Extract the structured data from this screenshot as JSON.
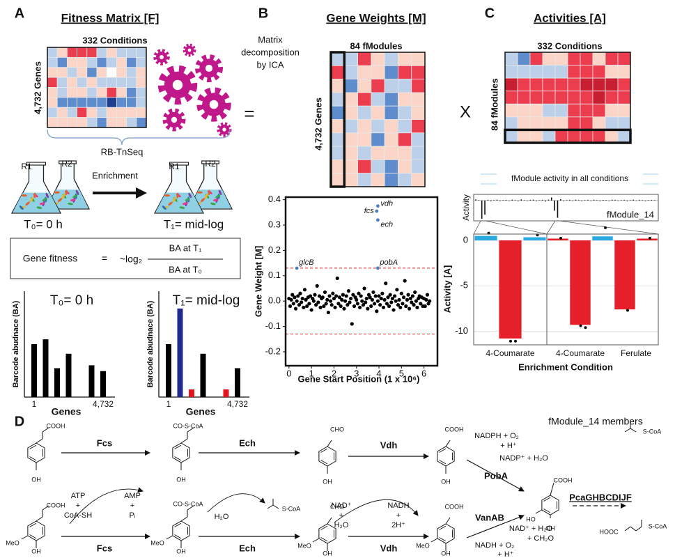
{
  "panel_a": {
    "label": "A",
    "title": "Fitness Matrix [F]",
    "matrix_columns": "332 Conditions",
    "matrix_rows": "4,732 Genes",
    "method": "RB-TnSeq",
    "replicates": [
      "R1",
      "R2",
      "R1",
      "R2"
    ],
    "enrichment": "Enrichment",
    "t0": "T₀= 0 h",
    "t1": "T₁=  mid-log",
    "formula": {
      "lhs": "Gene fitness",
      "equals": "=",
      "log": "~log₂",
      "numerator": "BA at T₁",
      "denominator": "BA at T₀"
    }
  },
  "middle": {
    "decomposition": [
      "Matrix",
      "decomposition",
      "by ICA"
    ],
    "equals": "=",
    "times": "X"
  },
  "panel_b": {
    "label": "B",
    "title": "Gene Weights [M]",
    "matrix_columns": "84 fModules",
    "matrix_rows": "4,732 Genes"
  },
  "panel_c": {
    "label": "C",
    "title": "Activities [A]",
    "matrix_columns": "332 Conditions",
    "matrix_rows": "84 fModules"
  },
  "chart_data": [
    {
      "type": "bar",
      "title": "T₀= 0 h",
      "ylabel": "Barcode abudnace (BA)",
      "xlabel": "Genes",
      "categories": [
        "1",
        null,
        null,
        null,
        null,
        null,
        "4,732"
      ],
      "values": [
        0.55,
        0.6,
        0.3,
        0.45,
        null,
        0.33,
        0.27
      ],
      "colors": [
        "#000000",
        "#000000",
        "#000000",
        "#000000",
        null,
        "#000000",
        "#000000"
      ],
      "ylim": [
        0,
        1.1
      ]
    },
    {
      "type": "bar",
      "title": "T₁= mid-log",
      "ylabel": "Barcode abudnace (BA)",
      "xlabel": "Genes",
      "categories": [
        "1",
        null,
        null,
        null,
        null,
        null,
        "4,732"
      ],
      "values": [
        0.55,
        0.92,
        0.08,
        0.45,
        null,
        0.08,
        0.3
      ],
      "colors": [
        "#000000",
        "#1f2a8c",
        "#e3141b",
        "#000000",
        null,
        "#e3141b",
        "#000000"
      ],
      "ylim": [
        0,
        1.1
      ]
    },
    {
      "type": "scatter",
      "ylabel": "Gene Weight [M]",
      "xlabel": "Gene Start Position (1 x 10⁶)",
      "xlim": [
        -0.15,
        6.6
      ],
      "ylim": [
        -0.255,
        0.41
      ],
      "xticks": [
        0,
        1,
        2,
        3,
        4,
        5,
        6
      ],
      "yticks": [
        -0.2,
        -0.1,
        {
          "value": 0,
          "label": "0.0"
        },
        0.1,
        0.2,
        0.3,
        0.4
      ],
      "thresholds": [
        0.13,
        -0.13
      ],
      "threshold_color": "#e3141b",
      "color": "#000000",
      "highlight_color": "#4a7dc1",
      "x": [
        0,
        0.05,
        0.1,
        0.15,
        0.2,
        0.25,
        0.3,
        0.35,
        0.4,
        0.45,
        0.5,
        0.55,
        0.6,
        0.65,
        0.7,
        0.75,
        0.8,
        0.85,
        0.9,
        0.95,
        1,
        1.05,
        1.1,
        1.15,
        1.2,
        1.25,
        1.3,
        1.35,
        1.4,
        1.45,
        1.5,
        1.55,
        1.6,
        1.65,
        1.7,
        1.75,
        1.8,
        1.85,
        1.9,
        1.95,
        2,
        2.05,
        2.1,
        2.15,
        2.2,
        2.25,
        2.3,
        2.35,
        2.4,
        2.45,
        2.5,
        2.55,
        2.6,
        2.65,
        2.7,
        2.75,
        2.8,
        2.85,
        2.9,
        2.95,
        3,
        3.05,
        3.1,
        3.15,
        3.2,
        3.25,
        3.3,
        3.35,
        3.4,
        3.45,
        3.5,
        3.55,
        3.6,
        3.65,
        3.7,
        3.75,
        3.8,
        3.85,
        3.9,
        3.95,
        4,
        4.05,
        4.1,
        4.15,
        4.2,
        4.25,
        4.3,
        4.35,
        4.4,
        4.45,
        4.5,
        4.55,
        4.6,
        4.65,
        4.7,
        4.75,
        4.8,
        4.85,
        4.9,
        4.95,
        5,
        5.05,
        5.1,
        5.15,
        5.2,
        5.25,
        5.3,
        5.35,
        5.4,
        5.45,
        5.5,
        5.55,
        5.6,
        5.65,
        5.7,
        5.75,
        5.8,
        5.85,
        5.9,
        5.95,
        6,
        6.05,
        6.1,
        6.15,
        6.2,
        6.25
      ],
      "y": [
        0.01,
        -0.02,
        0.005,
        0.025,
        -0.01,
        0.015,
        -0.03,
        0,
        0.02,
        -0.015,
        0.03,
        -0.005,
        0.01,
        -0.025,
        0.045,
        0.005,
        -0.02,
        0.015,
        -0.01,
        0.02,
        -0.035,
        0.01,
        0,
        0.025,
        -0.015,
        0.06,
        -0.005,
        0.02,
        -0.025,
        0.01,
        0.015,
        -0.02,
        0.035,
        -0.01,
        0.005,
        -0.045,
        0.02,
        0,
        -0.015,
        0.03,
        0.01,
        -0.025,
        0.02,
        0.09,
        -0.01,
        0.015,
        -0.02,
        0.005,
        0.025,
        -0.03,
        0,
        0.02,
        -0.015,
        0.04,
        -0.005,
        0.01,
        -0.09,
        0.025,
        -0.02,
        0.015,
        0.005,
        -0.01,
        0.03,
        -0.025,
        0.02,
        0,
        -0.015,
        0.05,
        -0.005,
        0.01,
        -0.03,
        0.025,
        0.015,
        -0.02,
        0.005,
        0.035,
        -0.01,
        0.02,
        -0.04,
        0,
        0.02,
        -0.015,
        0.01,
        0.03,
        -0.025,
        0.005,
        0.07,
        -0.01,
        0.015,
        -0.02,
        0.025,
        -0.005,
        0.01,
        -0.035,
        0.02,
        0,
        0.045,
        -0.015,
        0.005,
        -0.025,
        0.03,
        -0.01,
        0.015,
        0.08,
        -0.02,
        0.005,
        0.025,
        -0.03,
        0.01,
        -0.005,
        0.02,
        -0.015,
        0.035,
        0,
        -0.025,
        0.01,
        0.02,
        -0.01,
        0.015,
        -0.02,
        0.01,
        -0.02,
        0.005,
        0.025,
        -0.01,
        0
      ],
      "highlights": [
        {
          "label": "vdh",
          "x": 3.95,
          "y": 0.375
        },
        {
          "label": "fcs",
          "x": 3.9,
          "y": 0.355
        },
        {
          "label": "ech",
          "x": 3.95,
          "y": 0.32
        },
        {
          "label": "glcB",
          "x": 0.35,
          "y": 0.13
        },
        {
          "label": "pobA",
          "x": 3.95,
          "y": 0.13
        }
      ]
    },
    {
      "type": "strip",
      "title": "fModule activity in all conditions",
      "ylabel": "Activity",
      "annotation": "fModule_14",
      "ylim": [
        -1,
        0.3
      ],
      "values": [
        0.05,
        0.02,
        -0.9,
        -0.7,
        0.03,
        -0.04,
        0.02,
        0.04,
        -0.03,
        0.02,
        0.03,
        -0.02,
        0.04,
        0.02,
        -0.03,
        0.05,
        0.02,
        -0.02,
        0.03,
        0.04,
        -0.03,
        0.02,
        0.03,
        -0.05,
        0.04,
        0.15,
        -0.5,
        -0.85,
        0.06,
        -0.03,
        0.02,
        0.03,
        -0.02,
        0.04,
        0.02,
        -0.03,
        0.02,
        0.03,
        -0.02,
        0.04,
        0.02,
        -0.03,
        0.03,
        0.02,
        -0.02,
        0.04,
        0.03,
        -0.02,
        0.02,
        0.03,
        -0.03,
        0.02,
        0.04,
        -0.02,
        0.03,
        0.02,
        -0.03,
        0.02,
        0.03,
        0.02
      ]
    },
    {
      "type": "grouped_bar",
      "ylabel": "Activity [A]",
      "xlabel": "Enrichment Condition",
      "ylim": [
        -11.5,
        0.7
      ],
      "yticks": [
        0,
        -5,
        -10
      ],
      "grid": true,
      "groups": [
        {
          "label": "4-Coumarate",
          "values": [
            0.5,
            -10.8,
            0.35
          ],
          "colors": [
            "#29abe2",
            "#e5202a",
            "#29abe2"
          ],
          "points": [
            [
              0.8
            ],
            [
              -11.1,
              -11.1
            ],
            [
              0.6
            ]
          ]
        },
        {
          "label": "4-Coumarate",
          "values": [
            0.2,
            -9.3,
            0.45
          ],
          "colors": [
            "#e5202a",
            "#e5202a",
            "#29abe2"
          ],
          "points": [
            [
              0.25
            ],
            [
              -9.4,
              -9.6
            ],
            [
              1.4
            ]
          ]
        },
        {
          "label": "Ferulate",
          "values": [
            -7.6,
            0.2
          ],
          "colors": [
            "#e5202a",
            "#e5202a"
          ],
          "points": [
            [
              -7.7
            ],
            [
              0.25
            ]
          ]
        }
      ]
    }
  ],
  "panel_d": {
    "label": "D",
    "title": "fModule_14 members",
    "enzymes": [
      "Fcs",
      "Ech",
      "Vdh",
      "PobA",
      "Fcs",
      "Ech",
      "Vdh",
      "VanAB",
      "PcaGHBCDIJF"
    ],
    "cofactors": [
      "ATP",
      "+",
      "CoA-SH",
      "AMP",
      "+",
      "Pᵢ",
      "H₂O",
      "NAD⁺",
      "+",
      "H₂O",
      "NADH",
      "+",
      "2H⁺",
      "NADPH + O₂",
      "+ H⁺",
      "NADP⁺ + H₂O",
      "NAD⁺ + H₂O",
      "+ CH₂O",
      "NADH + O₂",
      "+ H⁺"
    ],
    "structures": [
      "COOH",
      "OH",
      "CO-S-CoA",
      "OH",
      "CHO",
      "OH",
      "S-CoA",
      "COOH",
      "OH",
      "COOH",
      "MeO",
      "OH",
      "CO-S-CoA",
      "MeO",
      "OH",
      "CHO",
      "MeO",
      "OH",
      "COOH",
      "MeO",
      "OH",
      "COOH",
      "HO",
      "OH",
      "S-CoA",
      "HOOC",
      "S-CoA"
    ]
  }
}
